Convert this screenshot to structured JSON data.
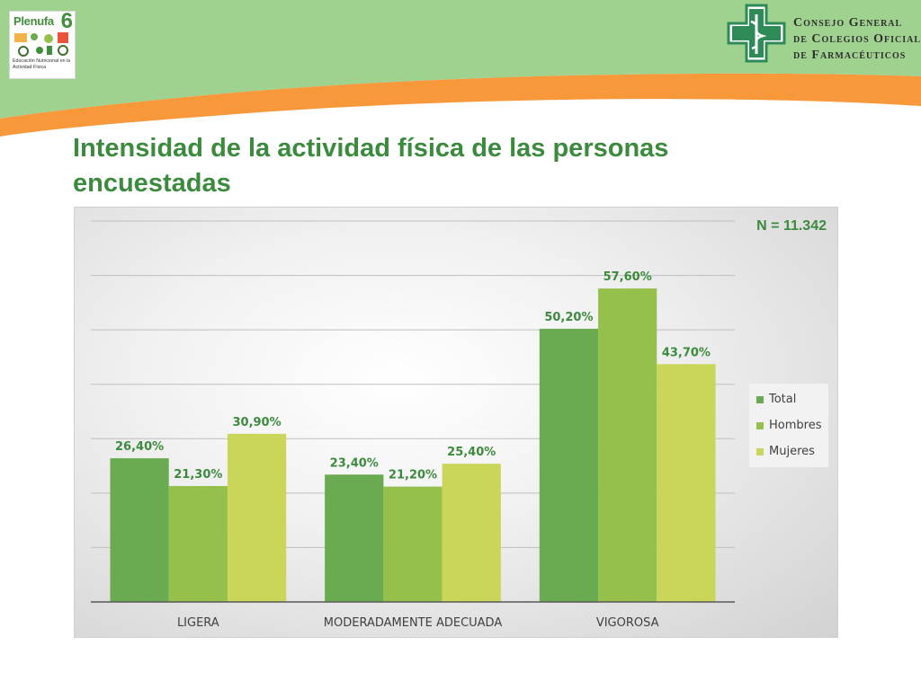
{
  "slide": {
    "title": "Intensidad de la actividad física de las personas encuestadas",
    "sample_label": "N = 11.342"
  },
  "logos": {
    "left": {
      "name": "Plenufa",
      "number": "6",
      "subtitle": "Educación Nutricional en la Actividad Física"
    },
    "right": {
      "line1": "Consejo General",
      "line2": "de Colegios Oficiales",
      "line3": "de Farmacéuticos"
    }
  },
  "colors": {
    "header_green": "#9fd18f",
    "header_orange": "#f7993a",
    "title_green": "#3c8a3e",
    "total": "#6aaa50",
    "hombres": "#95c04c",
    "mujeres": "#c9d65a",
    "label_green": "#3c8a3e",
    "axis_text": "#404040"
  },
  "chart_data": {
    "type": "bar",
    "title": "",
    "xlabel": "",
    "ylabel": "",
    "categories": [
      "LIGERA",
      "MODERADAMENTE ADECUADA",
      "VIGOROSA"
    ],
    "series": [
      {
        "name": "Total",
        "values": [
          26.4,
          23.4,
          50.2
        ],
        "labels": [
          "26,40%",
          "23,40%",
          "50,20%"
        ],
        "color": "#6aaa50"
      },
      {
        "name": "Hombres",
        "values": [
          21.3,
          21.2,
          57.6
        ],
        "labels": [
          "21,30%",
          "21,20%",
          "57,60%"
        ],
        "color": "#95c04c"
      },
      {
        "name": "Mujeres",
        "values": [
          30.9,
          25.4,
          43.7
        ],
        "labels": [
          "30,90%",
          "25,40%",
          "43,70%"
        ],
        "color": "#c9d65a"
      }
    ],
    "ylim": [
      0,
      70
    ],
    "unit": "%",
    "grid": true,
    "legend": "right"
  }
}
